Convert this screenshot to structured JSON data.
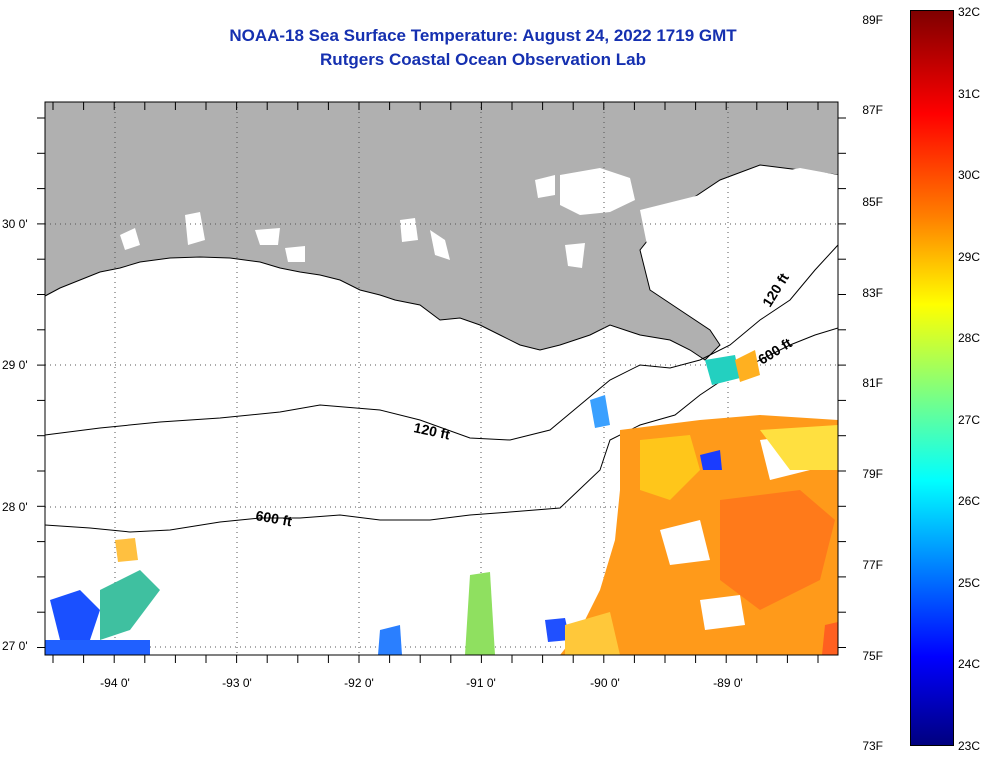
{
  "header": {
    "title": "NOAA-18 Sea Surface Temperature:  August 24, 2022 1719 GMT",
    "subtitle": "Rutgers Coastal Ocean Observation Lab"
  },
  "map": {
    "longitude_labels": [
      "-94 0'",
      "-93 0'",
      "-92 0'",
      "-91 0'",
      "-90 0'",
      "-89 0'"
    ],
    "latitude_labels": [
      "30 0'",
      "29 0'",
      "28 0'",
      "27 0'"
    ],
    "contour_labels": [
      "120 ft",
      "600 ft",
      "120 ft",
      "600 ft"
    ],
    "land_color": "#b0b0b0",
    "no_data_color": "#ffffff"
  },
  "colorbar": {
    "fahrenheit_labels": [
      "89F",
      "87F",
      "85F",
      "83F",
      "81F",
      "79F",
      "77F",
      "75F",
      "73F"
    ],
    "celsius_labels": [
      "32C",
      "31C",
      "30C",
      "29C",
      "28C",
      "27C",
      "26C",
      "25C",
      "24C",
      "23C"
    ],
    "colors": [
      "#00007f",
      "#0000ff",
      "#007fff",
      "#00ffff",
      "#7fff7f",
      "#ffff00",
      "#ff7f00",
      "#ff0000",
      "#7f0000"
    ]
  }
}
